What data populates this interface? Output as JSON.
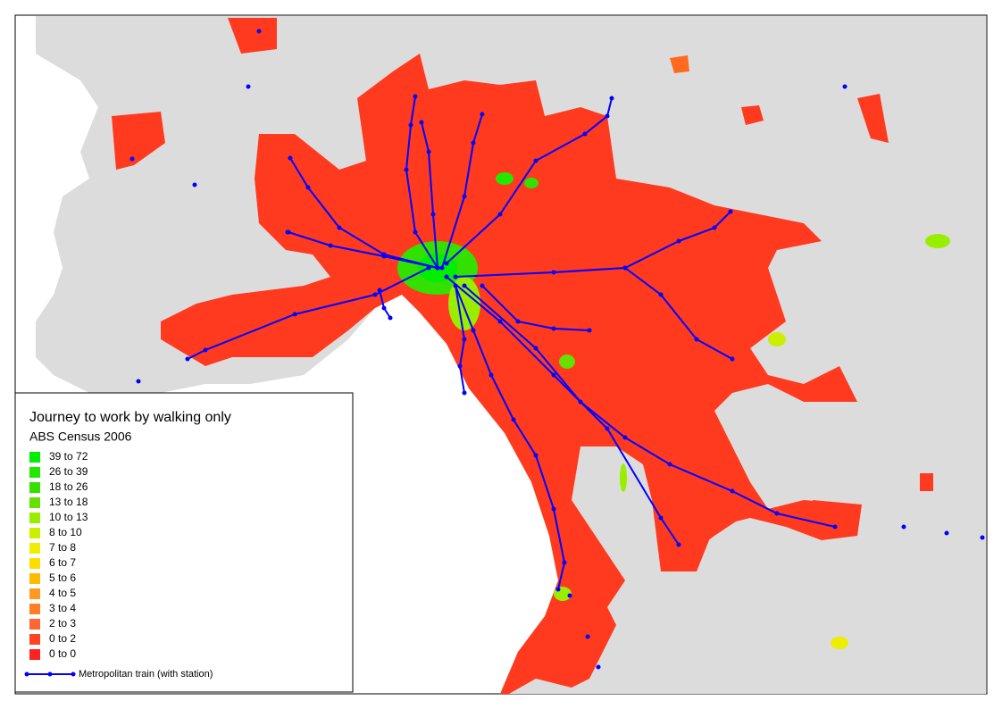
{
  "legend": {
    "title": "Journey to work by walking only",
    "subtitle": "ABS Census 2006",
    "items": [
      {
        "label": "39 to 72",
        "color": "#00ee00"
      },
      {
        "label": "26 to 39",
        "color": "#22e800"
      },
      {
        "label": "18 to 26",
        "color": "#33e000"
      },
      {
        "label": "13 to 18",
        "color": "#66e000"
      },
      {
        "label": "10 to 13",
        "color": "#99ee00"
      },
      {
        "label": "8 to 10",
        "color": "#ccee00"
      },
      {
        "label": "7 to 8",
        "color": "#eeee00"
      },
      {
        "label": "6 to 7",
        "color": "#ffdd00"
      },
      {
        "label": "5 to 6",
        "color": "#ffbb00"
      },
      {
        "label": "4 to 5",
        "color": "#ff9922"
      },
      {
        "label": "3 to 4",
        "color": "#ff7f27"
      },
      {
        "label": "2 to 3",
        "color": "#ff6633"
      },
      {
        "label": "0 to 2",
        "color": "#ff4422"
      },
      {
        "label": "0 to 0",
        "color": "#ff2222"
      }
    ],
    "train_label": "Metropolitan train (with station)",
    "train_color": "#0000ff"
  }
}
